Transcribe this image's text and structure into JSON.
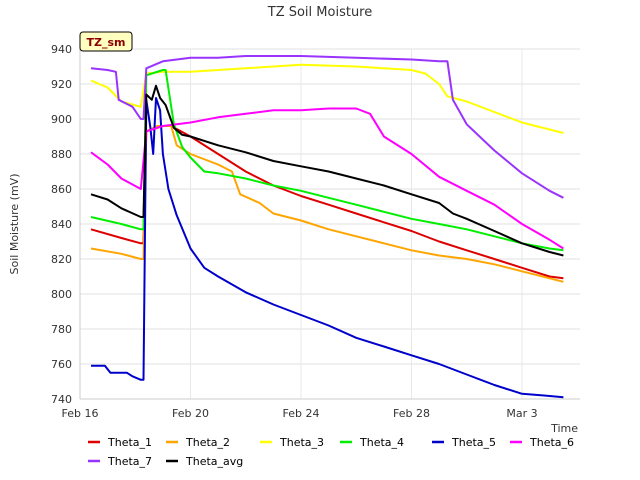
{
  "chart_data": {
    "type": "line",
    "title": "TZ Soil Moisture",
    "badge": "TZ_sm",
    "xlabel": "Time",
    "ylabel": "Soil Moisture (mV)",
    "x_unit": "days since Feb 16",
    "xlim": [
      0,
      18.1
    ],
    "ylim": [
      740,
      940
    ],
    "grid": true,
    "legend_position": "bottom",
    "x_ticks": [
      {
        "label": "Feb 16",
        "value": 0
      },
      {
        "label": "Feb 20",
        "value": 4
      },
      {
        "label": "Feb 24",
        "value": 8
      },
      {
        "label": "Feb 28",
        "value": 12
      },
      {
        "label": "Mar 3",
        "value": 16
      }
    ],
    "y_ticks": [
      740,
      760,
      780,
      800,
      820,
      840,
      860,
      880,
      900,
      920,
      940
    ],
    "series": [
      {
        "name": "Theta_1",
        "color": "#dd0000",
        "points": [
          [
            0.4,
            837
          ],
          [
            1.5,
            832
          ],
          [
            2.2,
            829
          ],
          [
            2.3,
            829
          ],
          [
            2.4,
            893
          ],
          [
            2.8,
            895
          ],
          [
            3.0,
            896
          ],
          [
            3.3,
            896
          ],
          [
            4.0,
            890
          ],
          [
            5.0,
            880
          ],
          [
            6.0,
            870
          ],
          [
            7.0,
            862
          ],
          [
            8.0,
            856
          ],
          [
            9.0,
            851
          ],
          [
            10.0,
            846
          ],
          [
            11.0,
            841
          ],
          [
            12.0,
            836
          ],
          [
            13.0,
            830
          ],
          [
            14.0,
            825
          ],
          [
            15.0,
            820
          ],
          [
            16.0,
            815
          ],
          [
            17.0,
            810
          ],
          [
            17.5,
            809
          ]
        ]
      },
      {
        "name": "Theta_2",
        "color": "#ffa500",
        "points": [
          [
            0.4,
            826
          ],
          [
            1.5,
            823
          ],
          [
            2.2,
            820
          ],
          [
            2.3,
            820
          ],
          [
            2.4,
            893
          ],
          [
            2.8,
            896
          ],
          [
            3.0,
            896
          ],
          [
            3.3,
            896
          ],
          [
            3.5,
            885
          ],
          [
            4.0,
            880
          ],
          [
            5.0,
            874
          ],
          [
            5.5,
            870
          ],
          [
            5.8,
            857
          ],
          [
            6.5,
            852
          ],
          [
            7.0,
            846
          ],
          [
            8.0,
            842
          ],
          [
            9.0,
            837
          ],
          [
            10.0,
            833
          ],
          [
            11.0,
            829
          ],
          [
            12.0,
            825
          ],
          [
            13.0,
            822
          ],
          [
            14.0,
            820
          ],
          [
            15.0,
            817
          ],
          [
            16.0,
            813
          ],
          [
            17.0,
            809
          ],
          [
            17.5,
            807
          ]
        ]
      },
      {
        "name": "Theta_3",
        "color": "#ffff00",
        "points": [
          [
            0.4,
            922
          ],
          [
            1.0,
            918
          ],
          [
            1.5,
            910
          ],
          [
            2.2,
            907
          ],
          [
            2.4,
            926
          ],
          [
            3.0,
            927
          ],
          [
            4.0,
            927
          ],
          [
            5.0,
            928
          ],
          [
            6.0,
            929
          ],
          [
            8.0,
            931
          ],
          [
            10.0,
            930
          ],
          [
            11.0,
            929
          ],
          [
            12.0,
            928
          ],
          [
            12.5,
            926
          ],
          [
            13.0,
            920
          ],
          [
            13.3,
            913
          ],
          [
            14.0,
            910
          ],
          [
            15.0,
            904
          ],
          [
            16.0,
            898
          ],
          [
            17.0,
            894
          ],
          [
            17.5,
            892
          ]
        ]
      },
      {
        "name": "Theta_4",
        "color": "#00ee00",
        "points": [
          [
            0.4,
            844
          ],
          [
            1.5,
            840
          ],
          [
            2.2,
            837
          ],
          [
            2.3,
            837
          ],
          [
            2.4,
            925
          ],
          [
            3.0,
            928
          ],
          [
            3.1,
            928
          ],
          [
            3.4,
            897
          ],
          [
            3.7,
            884
          ],
          [
            4.0,
            878
          ],
          [
            4.5,
            870
          ],
          [
            5.0,
            869
          ],
          [
            6.0,
            866
          ],
          [
            7.0,
            862
          ],
          [
            8.0,
            859
          ],
          [
            9.0,
            855
          ],
          [
            10.0,
            851
          ],
          [
            11.0,
            847
          ],
          [
            12.0,
            843
          ],
          [
            13.0,
            840
          ],
          [
            14.0,
            837
          ],
          [
            15.0,
            833
          ],
          [
            16.0,
            829
          ],
          [
            17.0,
            826
          ],
          [
            17.5,
            825
          ]
        ]
      },
      {
        "name": "Theta_5",
        "color": "#0000cc",
        "points": [
          [
            0.4,
            759
          ],
          [
            0.9,
            759
          ],
          [
            1.1,
            755
          ],
          [
            1.7,
            755
          ],
          [
            1.9,
            753
          ],
          [
            2.2,
            751
          ],
          [
            2.3,
            751
          ],
          [
            2.4,
            911
          ],
          [
            2.55,
            895
          ],
          [
            2.65,
            880
          ],
          [
            2.75,
            912
          ],
          [
            2.9,
            905
          ],
          [
            3.0,
            880
          ],
          [
            3.2,
            860
          ],
          [
            3.5,
            845
          ],
          [
            4.0,
            826
          ],
          [
            4.5,
            815
          ],
          [
            5.0,
            810
          ],
          [
            6.0,
            801
          ],
          [
            7.0,
            794
          ],
          [
            8.0,
            788
          ],
          [
            9.0,
            782
          ],
          [
            10.0,
            775
          ],
          [
            11.0,
            770
          ],
          [
            12.0,
            765
          ],
          [
            13.0,
            760
          ],
          [
            14.0,
            754
          ],
          [
            15.0,
            748
          ],
          [
            16.0,
            743
          ],
          [
            16.8,
            742
          ],
          [
            17.5,
            741
          ]
        ]
      },
      {
        "name": "Theta_6",
        "color": "#ff00ff",
        "points": [
          [
            0.4,
            881
          ],
          [
            1.0,
            874
          ],
          [
            1.5,
            866
          ],
          [
            2.2,
            860
          ],
          [
            2.4,
            893
          ],
          [
            3.0,
            896
          ],
          [
            4.0,
            898
          ],
          [
            5.0,
            901
          ],
          [
            6.0,
            903
          ],
          [
            7.0,
            905
          ],
          [
            8.0,
            905
          ],
          [
            9.0,
            906
          ],
          [
            10.0,
            906
          ],
          [
            10.5,
            903
          ],
          [
            11.0,
            890
          ],
          [
            12.0,
            880
          ],
          [
            13.0,
            867
          ],
          [
            14.0,
            859
          ],
          [
            15.0,
            851
          ],
          [
            16.0,
            840
          ],
          [
            17.0,
            831
          ],
          [
            17.5,
            826
          ]
        ]
      },
      {
        "name": "Theta_7",
        "color": "#9933ff",
        "points": [
          [
            0.4,
            929
          ],
          [
            1.0,
            928
          ],
          [
            1.3,
            927
          ],
          [
            1.4,
            911
          ],
          [
            1.9,
            907
          ],
          [
            2.2,
            900
          ],
          [
            2.3,
            900
          ],
          [
            2.4,
            929
          ],
          [
            3.0,
            933
          ],
          [
            4.0,
            935
          ],
          [
            5.0,
            935
          ],
          [
            6.0,
            936
          ],
          [
            8.0,
            936
          ],
          [
            10.0,
            935
          ],
          [
            12.0,
            934
          ],
          [
            13.0,
            933
          ],
          [
            13.3,
            933
          ],
          [
            13.5,
            911
          ],
          [
            14.0,
            897
          ],
          [
            15.0,
            882
          ],
          [
            16.0,
            869
          ],
          [
            17.0,
            859
          ],
          [
            17.5,
            855
          ]
        ]
      },
      {
        "name": "Theta_avg",
        "color": "#000000",
        "points": [
          [
            0.4,
            857
          ],
          [
            1.0,
            854
          ],
          [
            1.5,
            849
          ],
          [
            2.2,
            844
          ],
          [
            2.3,
            844
          ],
          [
            2.4,
            914
          ],
          [
            2.6,
            911
          ],
          [
            2.75,
            919
          ],
          [
            2.9,
            912
          ],
          [
            3.1,
            908
          ],
          [
            3.4,
            895
          ],
          [
            3.7,
            891
          ],
          [
            4.0,
            890
          ],
          [
            5.0,
            885
          ],
          [
            6.0,
            881
          ],
          [
            7.0,
            876
          ],
          [
            8.0,
            873
          ],
          [
            9.0,
            870
          ],
          [
            10.0,
            866
          ],
          [
            11.0,
            862
          ],
          [
            12.0,
            857
          ],
          [
            13.0,
            852
          ],
          [
            13.5,
            846
          ],
          [
            14.0,
            843
          ],
          [
            15.0,
            836
          ],
          [
            16.0,
            829
          ],
          [
            17.0,
            824
          ],
          [
            17.5,
            822
          ]
        ]
      }
    ]
  }
}
